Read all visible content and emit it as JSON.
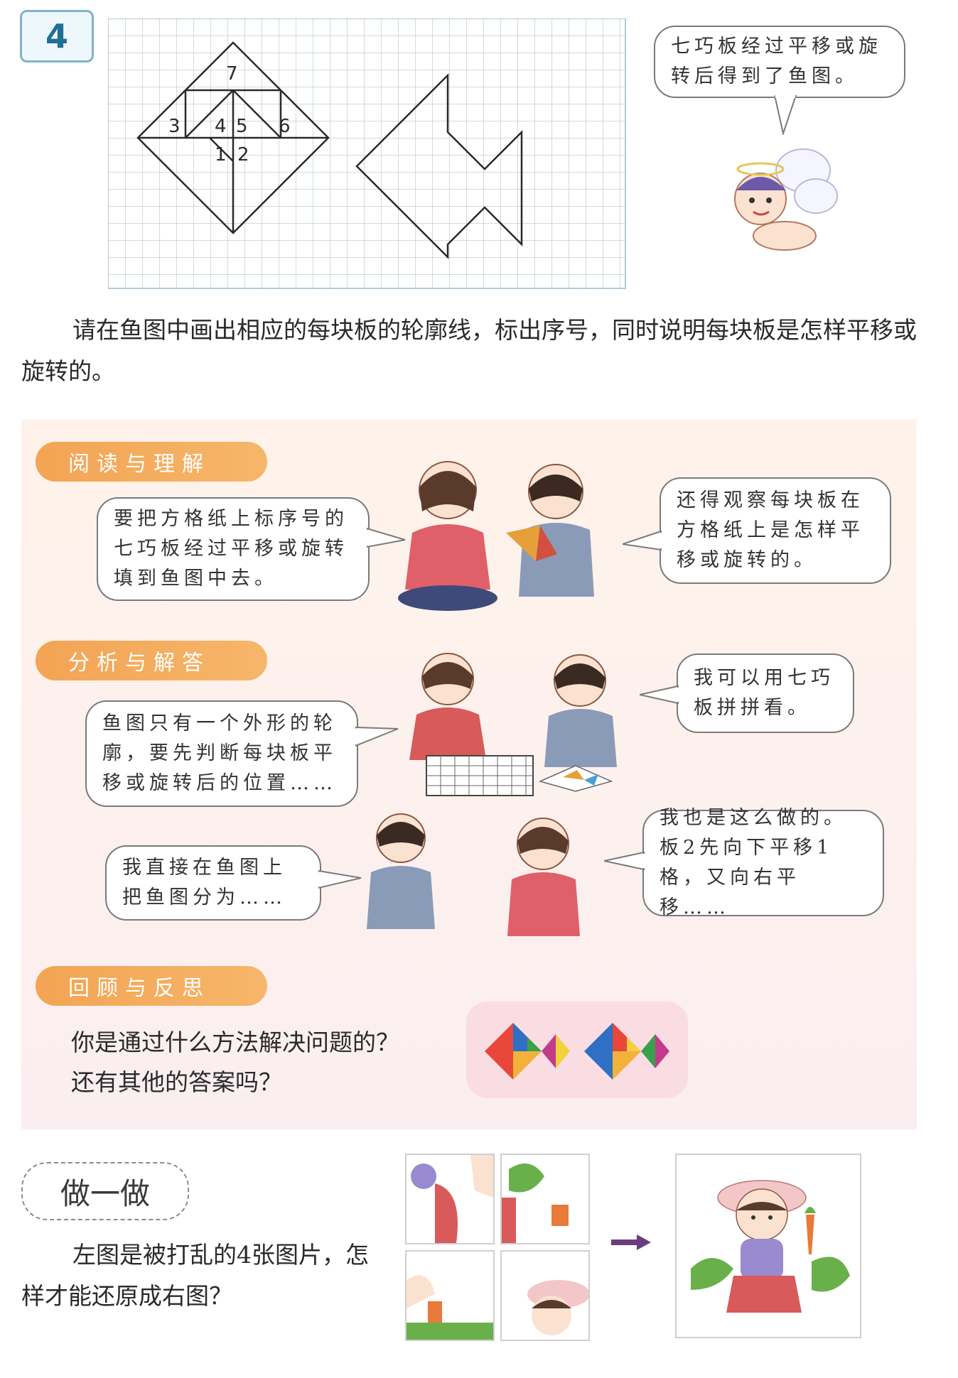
{
  "problem": {
    "number": "4",
    "bubble": "七巧板经过平移或旋转后得到了鱼图。",
    "piece_labels": [
      "7",
      "3",
      "4",
      "5",
      "6",
      "1",
      "2"
    ],
    "instruction": "请在鱼图中画出相应的每块板的轮廓线，标出序号，同时说明每块板是怎样平移或旋转的。"
  },
  "read_section": {
    "tag": "阅读与理解",
    "bubble_left": "要把方格纸上标序号的七巧板经过平移或旋转填到鱼图中去。",
    "bubble_right": "还得观察每块板在方格纸上是怎样平移或旋转的。"
  },
  "analysis_section": {
    "tag": "分析与解答",
    "bubble_top_right": "我可以用七巧板拼拼看。",
    "bubble_left": "鱼图只有一个外形的轮廓，要先判断每块板平移或旋转后的位置……",
    "bubble_bottom_left": "我直接在鱼图上把鱼图分为……",
    "bubble_bottom_right": "我也是这么做的。板2先向下平移1格，又向右平移……"
  },
  "review_section": {
    "tag": "回顾与反思",
    "question_line1": "你是通过什么方法解决问题的？",
    "question_line2": "还有其他的答案吗？"
  },
  "do_it": {
    "tag": "做一做",
    "text": "左图是被打乱的4张图片，怎样才能还原成右图？"
  },
  "colors": {
    "tag_orange": "#f3a454",
    "section_bg": "#fff2ea",
    "arrow": "#6b3d7d",
    "badge_blue": "#1f6f96"
  }
}
